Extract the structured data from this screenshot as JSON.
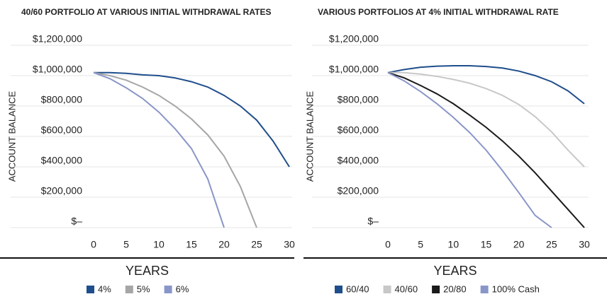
{
  "chart_data": [
    {
      "type": "line",
      "title": "40/60 PORTFOLIO AT VARIOUS INITIAL WITHDRAWAL RATES",
      "y_label": "ACCOUNT BALANCE",
      "x_label": "YEARS",
      "x": [
        0,
        2.5,
        5,
        7.5,
        10,
        12.5,
        15,
        17.5,
        20,
        22.5,
        25,
        27.5,
        30
      ],
      "series": [
        {
          "name": "4%",
          "color": "#1f4e8c",
          "values": [
            1020000,
            1020000,
            1015000,
            1005000,
            1000000,
            985000,
            960000,
            925000,
            870000,
            800000,
            707000,
            570000,
            400000
          ]
        },
        {
          "name": "5%",
          "color": "#a6a6a6",
          "values": [
            1020000,
            1000000,
            970000,
            925000,
            870000,
            800000,
            715000,
            610000,
            470000,
            270000,
            0,
            null,
            null
          ]
        },
        {
          "name": "6%",
          "color": "#8a96c8",
          "values": [
            1020000,
            980000,
            920000,
            850000,
            760000,
            650000,
            520000,
            320000,
            0,
            null,
            null,
            null,
            null
          ]
        }
      ],
      "xlim": [
        0,
        30
      ],
      "xticks": [
        0,
        5,
        10,
        15,
        20,
        25,
        30
      ],
      "ylim": [
        0,
        1200000
      ],
      "yticks": [
        {
          "value": 0,
          "label": "$–"
        },
        {
          "value": 200000,
          "label": "$200,000"
        },
        {
          "value": 400000,
          "label": "$400,000"
        },
        {
          "value": 600000,
          "label": "$600,000"
        },
        {
          "value": 800000,
          "label": "$800,000"
        },
        {
          "value": 1000000,
          "label": "$1,000,000"
        },
        {
          "value": 1200000,
          "label": "$1,200,000"
        }
      ],
      "grid": true,
      "legend": "bottom"
    },
    {
      "type": "line",
      "title": "VARIOUS PORTFOLIOS AT 4% INITIAL WITHDRAWAL RATE",
      "y_label": "ACCOUNT BALANCE",
      "x_label": "YEARS",
      "x": [
        0,
        2.5,
        5,
        7.5,
        10,
        12.5,
        15,
        17.5,
        20,
        22.5,
        25,
        27.5,
        30
      ],
      "series": [
        {
          "name": "60/40",
          "color": "#1f4e8c",
          "values": [
            1020000,
            1040000,
            1055000,
            1062000,
            1065000,
            1065000,
            1060000,
            1050000,
            1030000,
            1000000,
            960000,
            900000,
            815000
          ]
        },
        {
          "name": "40/60",
          "color": "#c8c8c8",
          "values": [
            1020000,
            1020000,
            1010000,
            995000,
            975000,
            950000,
            915000,
            870000,
            810000,
            730000,
            630000,
            510000,
            400000
          ]
        },
        {
          "name": "20/80",
          "color": "#1a1a1a",
          "values": [
            1020000,
            985000,
            935000,
            880000,
            815000,
            740000,
            660000,
            570000,
            470000,
            360000,
            240000,
            120000,
            0
          ]
        },
        {
          "name": "100% Cash",
          "color": "#8a96c8",
          "values": [
            1020000,
            965000,
            895000,
            815000,
            725000,
            625000,
            510000,
            375000,
            230000,
            80000,
            0,
            null,
            null
          ]
        }
      ],
      "xlim": [
        0,
        30
      ],
      "xticks": [
        0,
        5,
        10,
        15,
        20,
        25,
        30
      ],
      "ylim": [
        0,
        1200000
      ],
      "yticks": [
        {
          "value": 0,
          "label": "$–"
        },
        {
          "value": 200000,
          "label": "$200,000"
        },
        {
          "value": 400000,
          "label": "$400,000"
        },
        {
          "value": 600000,
          "label": "$600,000"
        },
        {
          "value": 800000,
          "label": "$800,000"
        },
        {
          "value": 1000000,
          "label": "$1,000,000"
        },
        {
          "value": 1200000,
          "label": "$1,200,000"
        }
      ],
      "grid": true,
      "legend": "bottom"
    }
  ]
}
